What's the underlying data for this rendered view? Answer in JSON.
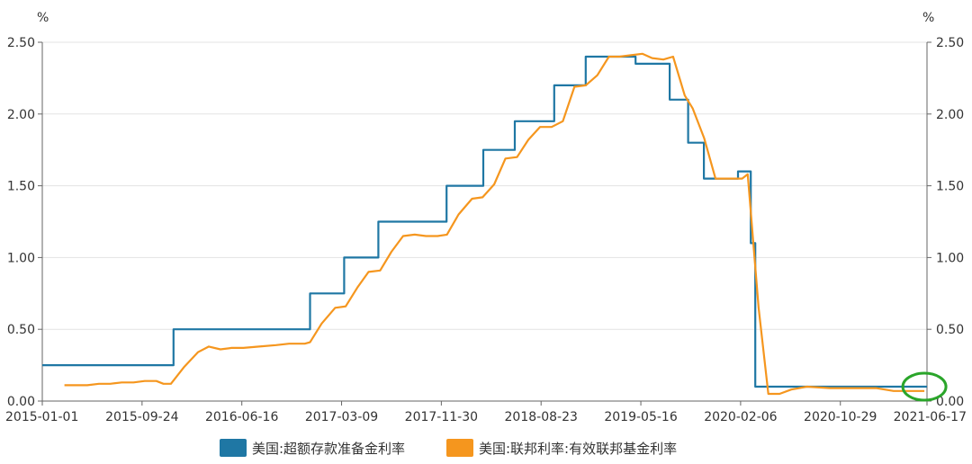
{
  "chart_data": {
    "type": "line",
    "y_unit_left": "%",
    "y_unit_right": "%",
    "x_ticks": [
      "2015-01-01",
      "2015-09-24",
      "2016-06-16",
      "2017-03-09",
      "2017-11-30",
      "2018-08-23",
      "2019-05-16",
      "2020-02-06",
      "2020-10-29",
      "2021-06-17"
    ],
    "y_ticks": [
      "0.00",
      "0.50",
      "1.00",
      "1.50",
      "2.00",
      "2.50"
    ],
    "y_tick_values": [
      0,
      0.5,
      1.0,
      1.5,
      2.0,
      2.5
    ],
    "ylim": [
      0,
      2.5
    ],
    "xlim": [
      "2015-01-01",
      "2021-06-17"
    ],
    "grid": true,
    "legend_position": "bottom",
    "series": [
      {
        "name": "美国:超额存款准备金利率",
        "color": "#1f77a4",
        "step": true,
        "points": [
          [
            "2015-01-01",
            0.25
          ],
          [
            "2015-12-17",
            0.5
          ],
          [
            "2016-12-15",
            0.75
          ],
          [
            "2017-03-16",
            1.0
          ],
          [
            "2017-06-15",
            1.25
          ],
          [
            "2017-12-14",
            1.5
          ],
          [
            "2018-03-22",
            1.75
          ],
          [
            "2018-06-14",
            1.95
          ],
          [
            "2018-09-27",
            2.2
          ],
          [
            "2018-12-20",
            2.4
          ],
          [
            "2019-05-02",
            2.35
          ],
          [
            "2019-08-01",
            2.1
          ],
          [
            "2019-09-19",
            1.8
          ],
          [
            "2019-10-31",
            1.55
          ],
          [
            "2020-01-30",
            1.6
          ],
          [
            "2020-03-04",
            1.1
          ],
          [
            "2020-03-16",
            0.1
          ],
          [
            "2021-06-17",
            0.1
          ]
        ]
      },
      {
        "name": "美国:联邦利率:有效联邦基金利率",
        "color": "#f5961e",
        "step": false,
        "points": [
          [
            "2015-03-01",
            0.11
          ],
          [
            "2015-05-01",
            0.11
          ],
          [
            "2015-06-01",
            0.12
          ],
          [
            "2015-07-01",
            0.12
          ],
          [
            "2015-08-01",
            0.13
          ],
          [
            "2015-09-01",
            0.13
          ],
          [
            "2015-10-01",
            0.14
          ],
          [
            "2015-11-01",
            0.14
          ],
          [
            "2015-11-20",
            0.12
          ],
          [
            "2015-12-10",
            0.12
          ],
          [
            "2016-01-15",
            0.24
          ],
          [
            "2016-02-20",
            0.34
          ],
          [
            "2016-03-20",
            0.38
          ],
          [
            "2016-04-20",
            0.36
          ],
          [
            "2016-05-20",
            0.37
          ],
          [
            "2016-06-20",
            0.37
          ],
          [
            "2016-08-01",
            0.38
          ],
          [
            "2016-09-15",
            0.39
          ],
          [
            "2016-10-20",
            0.4
          ],
          [
            "2016-12-01",
            0.4
          ],
          [
            "2016-12-15",
            0.41
          ],
          [
            "2017-01-15",
            0.54
          ],
          [
            "2017-02-20",
            0.65
          ],
          [
            "2017-03-20",
            0.66
          ],
          [
            "2017-04-20",
            0.79
          ],
          [
            "2017-05-20",
            0.9
          ],
          [
            "2017-06-20",
            0.91
          ],
          [
            "2017-07-20",
            1.04
          ],
          [
            "2017-08-20",
            1.15
          ],
          [
            "2017-09-20",
            1.16
          ],
          [
            "2017-10-20",
            1.15
          ],
          [
            "2017-11-20",
            1.15
          ],
          [
            "2017-12-15",
            1.16
          ],
          [
            "2018-01-15",
            1.3
          ],
          [
            "2018-02-20",
            1.41
          ],
          [
            "2018-03-20",
            1.42
          ],
          [
            "2018-04-20",
            1.51
          ],
          [
            "2018-05-20",
            1.69
          ],
          [
            "2018-06-20",
            1.7
          ],
          [
            "2018-07-20",
            1.82
          ],
          [
            "2018-08-20",
            1.91
          ],
          [
            "2018-09-20",
            1.91
          ],
          [
            "2018-10-20",
            1.95
          ],
          [
            "2018-11-20",
            2.19
          ],
          [
            "2018-12-20",
            2.2
          ],
          [
            "2019-01-20",
            2.27
          ],
          [
            "2019-02-20",
            2.4
          ],
          [
            "2019-03-20",
            2.4
          ],
          [
            "2019-04-20",
            2.41
          ],
          [
            "2019-05-20",
            2.42
          ],
          [
            "2019-06-15",
            2.39
          ],
          [
            "2019-07-15",
            2.38
          ],
          [
            "2019-08-10",
            2.4
          ],
          [
            "2019-09-10",
            2.13
          ],
          [
            "2019-10-01",
            2.04
          ],
          [
            "2019-11-01",
            1.83
          ],
          [
            "2019-12-01",
            1.55
          ],
          [
            "2020-01-15",
            1.55
          ],
          [
            "2020-02-10",
            1.55
          ],
          [
            "2020-02-25",
            1.58
          ],
          [
            "2020-03-25",
            0.65
          ],
          [
            "2020-04-20",
            0.05
          ],
          [
            "2020-05-20",
            0.05
          ],
          [
            "2020-06-20",
            0.08
          ],
          [
            "2020-08-01",
            0.1
          ],
          [
            "2020-10-01",
            0.09
          ],
          [
            "2020-12-01",
            0.09
          ],
          [
            "2021-02-01",
            0.09
          ],
          [
            "2021-03-20",
            0.07
          ],
          [
            "2021-05-01",
            0.07
          ],
          [
            "2021-06-10",
            0.07
          ]
        ]
      }
    ],
    "annotation": {
      "type": "ellipse",
      "color": "#2aa52a",
      "at": [
        "2021-06-10",
        0.1
      ]
    }
  }
}
